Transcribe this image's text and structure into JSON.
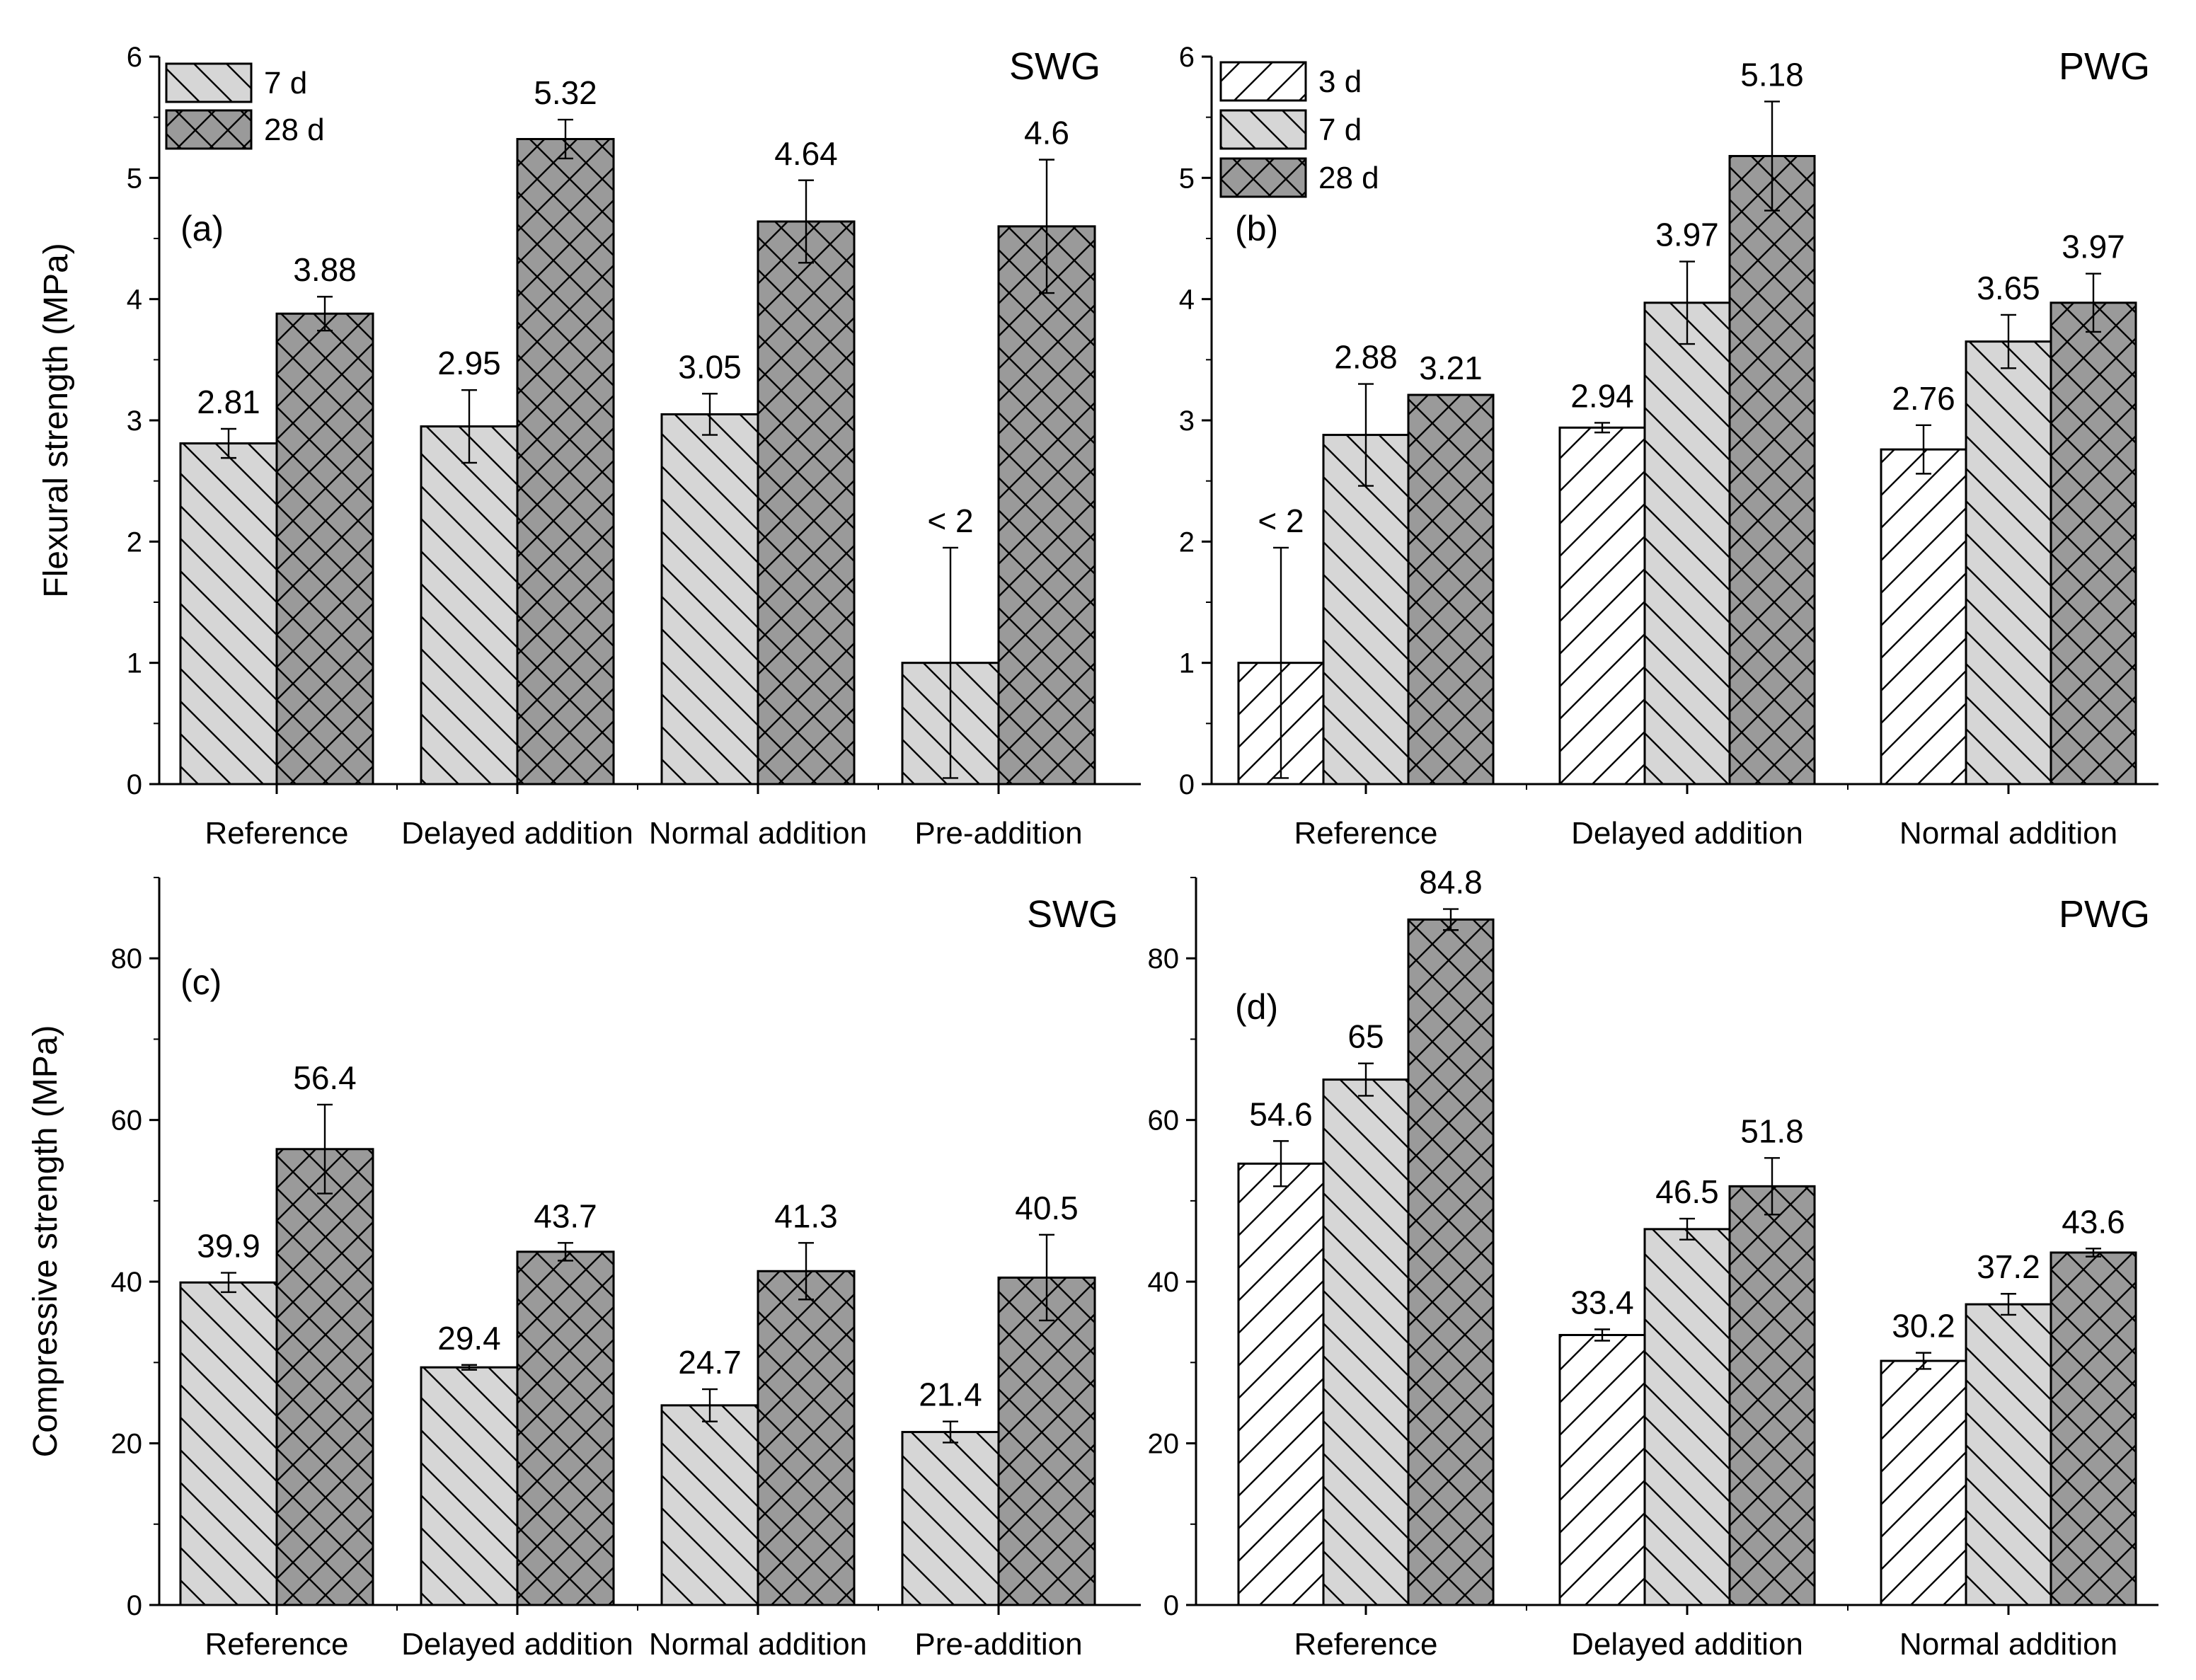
{
  "figure": {
    "description_labels": {
      "flexural_ylabel": "Flexural strength (MPa)",
      "compressive_ylabel": "Compressive strength (MPa)"
    }
  },
  "colors": {
    "age_3d": "#ffffff",
    "age_7d": "#d6d6d6",
    "age_28d": "#9a9a9a",
    "stroke": "#000000"
  },
  "chart_data": [
    {
      "type": "bar",
      "panel": "(a)",
      "group_label": "SWG",
      "ylabel": "Flexural strength (MPa)",
      "ylim": [
        0,
        6
      ],
      "yticks": [
        "0",
        "1",
        "2",
        "3",
        "4",
        "5",
        "6"
      ],
      "categories": [
        "Reference",
        "Delayed addition",
        "Normal addition",
        "Pre-addition"
      ],
      "series": [
        {
          "name": "7 d",
          "pattern": "back",
          "values": [
            2.81,
            2.95,
            3.05,
            1.0
          ],
          "errors": [
            0.12,
            0.3,
            0.17,
            0.95
          ],
          "labels": [
            "2.81",
            "2.95",
            "3.05",
            "< 2"
          ]
        },
        {
          "name": "28 d",
          "pattern": "cross",
          "values": [
            3.88,
            5.32,
            4.64,
            4.6
          ],
          "errors": [
            0.14,
            0.16,
            0.34,
            0.55
          ],
          "labels": [
            "3.88",
            "5.32",
            "4.64",
            "4.6"
          ]
        }
      ]
    },
    {
      "type": "bar",
      "panel": "(b)",
      "group_label": "PWG",
      "ylabel": "",
      "ylim": [
        0,
        6
      ],
      "yticks": [
        "0",
        "1",
        "2",
        "3",
        "4",
        "5",
        "6"
      ],
      "categories": [
        "Reference",
        "Delayed addition",
        "Normal addition"
      ],
      "series": [
        {
          "name": "3 d",
          "pattern": "fwd",
          "values": [
            1.0,
            2.94,
            2.76
          ],
          "errors": [
            0.95,
            0.04,
            0.2
          ],
          "labels": [
            "< 2",
            "2.94",
            "2.76"
          ]
        },
        {
          "name": "7 d",
          "pattern": "back",
          "values": [
            2.88,
            3.97,
            3.65
          ],
          "errors": [
            0.42,
            0.34,
            0.22
          ],
          "labels": [
            "2.88",
            "3.97",
            "3.65"
          ]
        },
        {
          "name": "28 d",
          "pattern": "cross",
          "values": [
            3.21,
            5.18,
            3.97
          ],
          "errors": [
            0.0,
            0.45,
            0.24
          ],
          "labels": [
            "3.21",
            "5.18",
            "3.97"
          ]
        }
      ]
    },
    {
      "type": "bar",
      "panel": "(c)",
      "group_label": "SWG",
      "ylabel": "Compressive strength (MPa)",
      "ylim": [
        0,
        90
      ],
      "yticks": [
        "0",
        "20",
        "40",
        "60",
        "80"
      ],
      "categories": [
        "Reference",
        "Delayed addition",
        "Normal addition",
        "Pre-addition"
      ],
      "series": [
        {
          "name": "7 d",
          "pattern": "back",
          "values": [
            39.9,
            29.4,
            24.7,
            21.4
          ],
          "errors": [
            1.2,
            0.3,
            2.0,
            1.3
          ],
          "labels": [
            "39.9",
            "29.4",
            "24.7",
            "21.4"
          ]
        },
        {
          "name": "28 d",
          "pattern": "cross",
          "values": [
            56.4,
            43.7,
            41.3,
            40.5
          ],
          "errors": [
            5.5,
            1.1,
            3.5,
            5.3
          ],
          "labels": [
            "56.4",
            "43.7",
            "41.3",
            "40.5"
          ]
        }
      ]
    },
    {
      "type": "bar",
      "panel": "(d)",
      "group_label": "PWG",
      "ylabel": "",
      "ylim": [
        0,
        90
      ],
      "yticks": [
        "0",
        "20",
        "40",
        "60",
        "80"
      ],
      "categories": [
        "Reference",
        "Delayed addition",
        "Normal addition"
      ],
      "series": [
        {
          "name": "3 d",
          "pattern": "fwd",
          "values": [
            54.6,
            33.4,
            30.2
          ],
          "errors": [
            2.8,
            0.7,
            1.0
          ],
          "labels": [
            "54.6",
            "33.4",
            "30.2"
          ]
        },
        {
          "name": "7 d",
          "pattern": "back",
          "values": [
            65,
            46.5,
            37.2
          ],
          "errors": [
            2.0,
            1.3,
            1.3
          ],
          "labels": [
            "65",
            "46.5",
            "37.2"
          ]
        },
        {
          "name": "28 d",
          "pattern": "cross",
          "values": [
            84.8,
            51.8,
            43.6
          ],
          "errors": [
            1.3,
            3.5,
            0.5
          ],
          "labels": [
            "84.8",
            "51.8",
            "43.6"
          ]
        }
      ]
    }
  ]
}
